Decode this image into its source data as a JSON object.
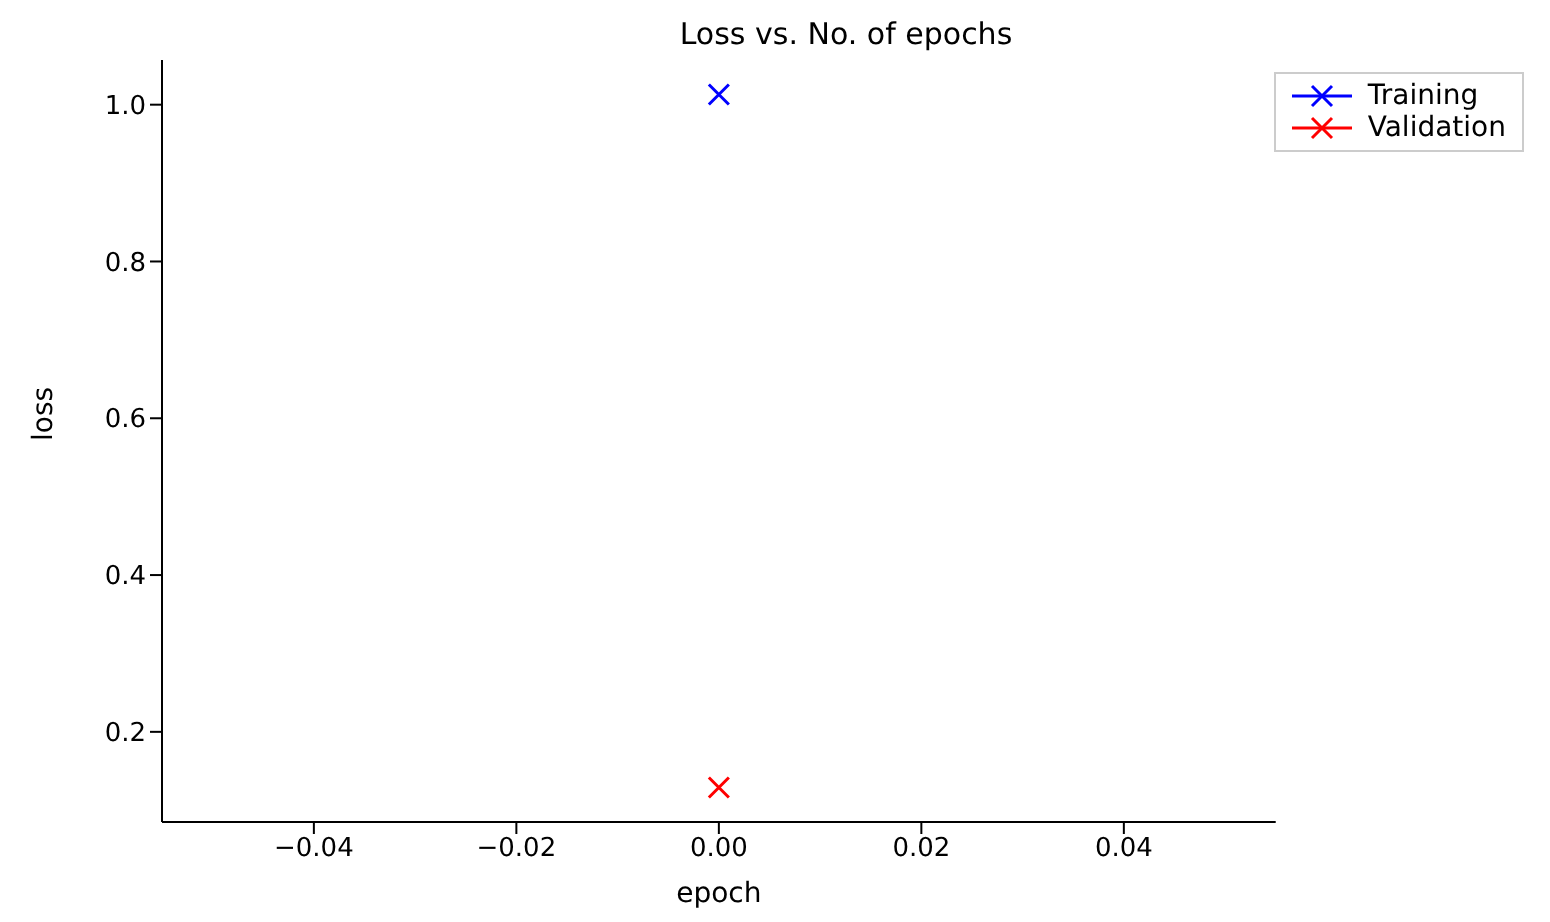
{
  "chart_data": {
    "type": "line",
    "title": "Loss vs. No. of epochs",
    "xlabel": "epoch",
    "ylabel": "loss",
    "x": [
      0
    ],
    "series": [
      {
        "name": "Training",
        "color": "#0000ff",
        "values": [
          1.013
        ]
      },
      {
        "name": "Validation",
        "color": "#ff0000",
        "values": [
          0.129
        ]
      }
    ],
    "xlim": [
      -0.055,
      0.055
    ],
    "xticks": [
      -0.04,
      -0.02,
      {
        "value": 0,
        "label": "0.00"
      },
      0.02,
      0.04
    ],
    "ylim": [
      0.085,
      1.057
    ],
    "yticks": [
      0.2,
      0.4,
      0.6,
      0.8,
      {
        "value": 1,
        "label": "1.0"
      }
    ],
    "marker": "cross",
    "legend": "top right",
    "grid": false
  }
}
